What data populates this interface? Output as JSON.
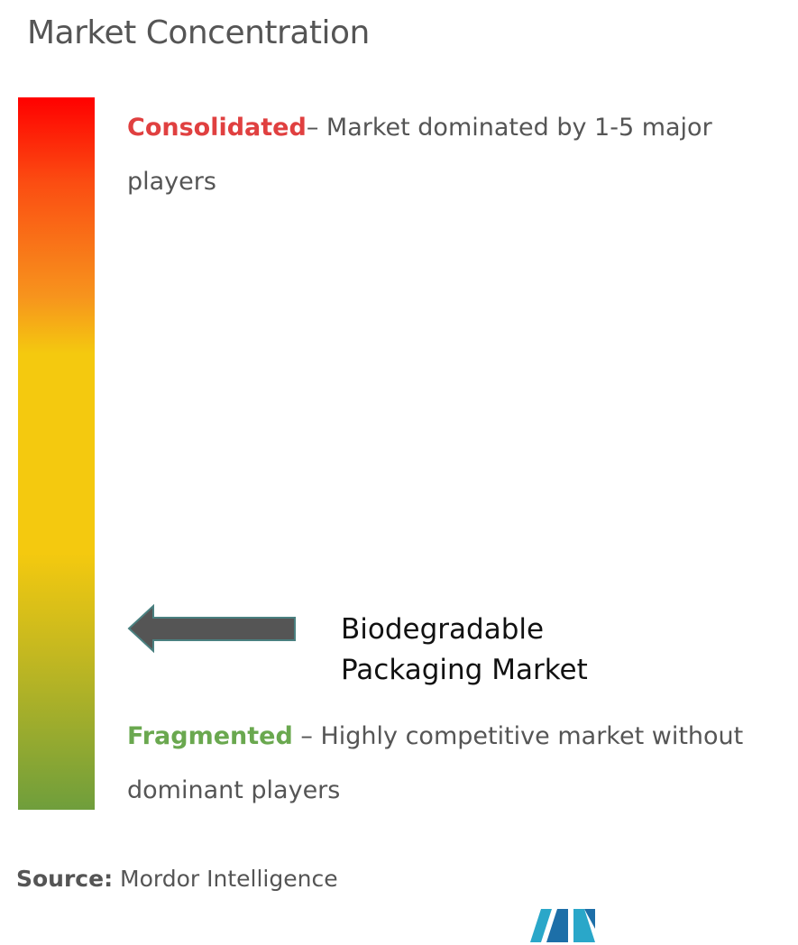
{
  "header": {
    "title": "Market Concentration"
  },
  "scale": {
    "consolidated": {
      "label": "Consolidated",
      "description": "– Market dominated by 1-5 major players"
    },
    "fragmented": {
      "label": "Fragmented",
      "description": "– Highly competitive market without dominant players"
    }
  },
  "marker": {
    "lines": [
      "Biodegradable",
      "Packaging Market"
    ]
  },
  "footer": {
    "source_label": "Source:",
    "source": "Mordor Intelligence"
  }
}
